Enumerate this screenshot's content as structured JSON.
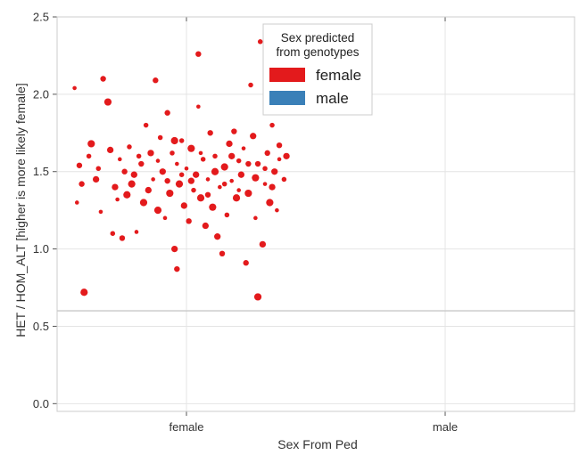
{
  "chart_data": {
    "type": "scatter",
    "xlabel": "Sex From Ped",
    "ylabel": "HET / HOM_ALT [higher is more likely female]",
    "categories": [
      "female",
      "male"
    ],
    "ylim": [
      -0.05,
      2.5
    ],
    "yticks": [
      "0.0",
      "0.5",
      "1.0",
      "1.5",
      "2.0",
      "2.5"
    ],
    "grid": true,
    "threshold_line": 0.6,
    "legend": {
      "title_lines": [
        "Sex predicted",
        "from genotypes"
      ],
      "placement": "top-center",
      "entries": [
        {
          "label": "female",
          "color": "#e31a1c"
        },
        {
          "label": "male",
          "color": "#3a80b8"
        }
      ]
    },
    "series": [
      {
        "name": "female",
        "color": "#e31a1c",
        "category": "female",
        "points": [
          [
            -0.47,
            2.04
          ],
          [
            -0.45,
            1.54
          ],
          [
            -0.43,
            0.72
          ],
          [
            -0.41,
            1.6
          ],
          [
            -0.38,
            1.45
          ],
          [
            -0.36,
            1.24
          ],
          [
            -0.35,
            2.1
          ],
          [
            -0.33,
            1.95
          ],
          [
            -0.31,
            1.1
          ],
          [
            -0.3,
            1.4
          ],
          [
            -0.28,
            1.58
          ],
          [
            -0.27,
            1.07
          ],
          [
            -0.25,
            1.35
          ],
          [
            -0.24,
            1.66
          ],
          [
            -0.22,
            1.48
          ],
          [
            -0.21,
            1.11
          ],
          [
            -0.19,
            1.55
          ],
          [
            -0.18,
            1.3
          ],
          [
            -0.17,
            1.8
          ],
          [
            -0.15,
            1.62
          ],
          [
            -0.14,
            1.45
          ],
          [
            -0.13,
            2.09
          ],
          [
            -0.12,
            1.25
          ],
          [
            -0.11,
            1.72
          ],
          [
            -0.1,
            1.5
          ],
          [
            -0.09,
            1.2
          ],
          [
            -0.08,
            1.88
          ],
          [
            -0.07,
            1.36
          ],
          [
            -0.06,
            1.62
          ],
          [
            -0.05,
            1.0
          ],
          [
            -0.04,
            1.55
          ],
          [
            -0.04,
            0.87
          ],
          [
            -0.03,
            1.42
          ],
          [
            -0.02,
            1.7
          ],
          [
            -0.01,
            1.28
          ],
          [
            0.0,
            1.52
          ],
          [
            0.01,
            1.18
          ],
          [
            0.02,
            1.65
          ],
          [
            0.03,
            1.38
          ],
          [
            0.04,
            1.48
          ],
          [
            0.05,
            1.92
          ],
          [
            0.05,
            2.26
          ],
          [
            0.06,
            1.33
          ],
          [
            0.07,
            1.58
          ],
          [
            0.08,
            1.15
          ],
          [
            0.09,
            1.45
          ],
          [
            0.1,
            1.75
          ],
          [
            0.11,
            1.27
          ],
          [
            0.12,
            1.6
          ],
          [
            0.13,
            1.08
          ],
          [
            0.14,
            1.4
          ],
          [
            0.15,
            0.97
          ],
          [
            0.16,
            1.53
          ],
          [
            0.17,
            1.22
          ],
          [
            0.18,
            1.68
          ],
          [
            0.19,
            1.44
          ],
          [
            0.2,
            1.76
          ],
          [
            0.21,
            1.33
          ],
          [
            0.22,
            1.57
          ],
          [
            0.23,
            1.48
          ],
          [
            0.24,
            1.65
          ],
          [
            0.25,
            0.91
          ],
          [
            0.26,
            1.36
          ],
          [
            0.27,
            2.06
          ],
          [
            0.28,
            1.73
          ],
          [
            0.29,
            1.2
          ],
          [
            0.3,
            1.55
          ],
          [
            0.3,
            0.69
          ],
          [
            0.31,
            2.34
          ],
          [
            0.32,
            1.03
          ],
          [
            0.33,
            1.42
          ],
          [
            0.34,
            1.62
          ],
          [
            0.35,
            1.3
          ],
          [
            0.36,
            1.8
          ],
          [
            0.37,
            1.5
          ],
          [
            0.38,
            1.25
          ],
          [
            0.39,
            1.67
          ],
          [
            0.4,
            2.02
          ],
          [
            0.41,
            1.45
          ],
          [
            0.42,
            1.6
          ],
          [
            -0.46,
            1.3
          ],
          [
            -0.44,
            1.42
          ],
          [
            -0.4,
            1.68
          ],
          [
            -0.37,
            1.52
          ],
          [
            -0.32,
            1.64
          ],
          [
            -0.29,
            1.32
          ],
          [
            -0.26,
            1.5
          ],
          [
            -0.23,
            1.42
          ],
          [
            -0.2,
            1.6
          ],
          [
            -0.16,
            1.38
          ],
          [
            -0.12,
            1.57
          ],
          [
            -0.08,
            1.44
          ],
          [
            -0.05,
            1.7
          ],
          [
            -0.02,
            1.48
          ],
          [
            0.02,
            1.44
          ],
          [
            0.06,
            1.62
          ],
          [
            0.09,
            1.35
          ],
          [
            0.12,
            1.5
          ],
          [
            0.16,
            1.42
          ],
          [
            0.19,
            1.6
          ],
          [
            0.22,
            1.38
          ],
          [
            0.26,
            1.55
          ],
          [
            0.29,
            1.46
          ],
          [
            0.33,
            1.52
          ],
          [
            0.36,
            1.4
          ],
          [
            0.39,
            1.58
          ]
        ]
      },
      {
        "name": "male",
        "color": "#3a80b8",
        "category": "male",
        "points": []
      }
    ]
  }
}
